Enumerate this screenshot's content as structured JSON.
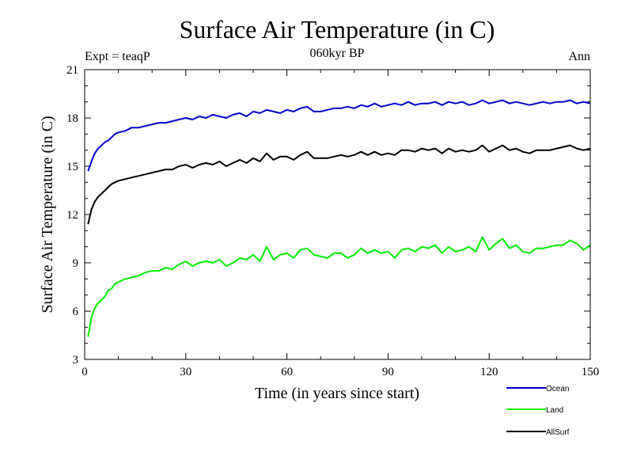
{
  "chart_data": {
    "type": "line",
    "title": "Surface Air Temperature (in C)",
    "subtitle": "060kyr BP",
    "left_label": "Expt = teaqP",
    "right_label": "Ann",
    "xlabel": "Time (in years since start)",
    "ylabel": "Surface Air Temperature (in C)",
    "xlim": [
      0,
      150
    ],
    "ylim": [
      3,
      21
    ],
    "xticks": [
      0,
      30,
      60,
      90,
      120,
      150
    ],
    "yticks": [
      3,
      6,
      9,
      12,
      15,
      18,
      21
    ],
    "legend_position": "bottom-right",
    "series": [
      {
        "name": "Ocean",
        "color": "#0000cc",
        "x": [
          1,
          2,
          3,
          4,
          5,
          6,
          7,
          8,
          9,
          10,
          12,
          14,
          16,
          18,
          20,
          22,
          24,
          26,
          28,
          30,
          32,
          34,
          36,
          38,
          40,
          42,
          44,
          46,
          48,
          50,
          52,
          54,
          56,
          58,
          60,
          62,
          64,
          66,
          68,
          70,
          72,
          74,
          76,
          78,
          80,
          82,
          84,
          86,
          88,
          90,
          92,
          94,
          96,
          98,
          100,
          102,
          104,
          106,
          108,
          110,
          112,
          114,
          116,
          118,
          120,
          122,
          124,
          126,
          128,
          130,
          132,
          134,
          136,
          138,
          140,
          142,
          144,
          146,
          148,
          150
        ],
        "values": [
          14.7,
          15.3,
          15.8,
          16.1,
          16.3,
          16.5,
          16.6,
          16.8,
          17.0,
          17.1,
          17.2,
          17.4,
          17.4,
          17.5,
          17.6,
          17.7,
          17.7,
          17.8,
          17.9,
          18.0,
          17.9,
          18.1,
          18.0,
          18.2,
          18.1,
          18.0,
          18.2,
          18.3,
          18.1,
          18.4,
          18.3,
          18.5,
          18.4,
          18.3,
          18.5,
          18.4,
          18.6,
          18.7,
          18.4,
          18.4,
          18.5,
          18.6,
          18.6,
          18.7,
          18.6,
          18.8,
          18.7,
          18.9,
          18.7,
          18.8,
          18.9,
          18.8,
          19.0,
          18.8,
          18.9,
          18.9,
          19.0,
          18.8,
          19.0,
          18.9,
          19.0,
          18.8,
          18.9,
          19.1,
          18.9,
          19.0,
          19.1,
          18.9,
          19.0,
          18.9,
          18.8,
          18.9,
          19.0,
          18.9,
          19.0,
          19.0,
          19.1,
          18.9,
          19.0,
          18.9
        ]
      },
      {
        "name": "Land",
        "color": "#00ee00",
        "x": [
          1,
          2,
          3,
          4,
          5,
          6,
          7,
          8,
          9,
          10,
          12,
          14,
          16,
          18,
          20,
          22,
          24,
          26,
          28,
          30,
          32,
          34,
          36,
          38,
          40,
          42,
          44,
          46,
          48,
          50,
          52,
          54,
          56,
          58,
          60,
          62,
          64,
          66,
          68,
          70,
          72,
          74,
          76,
          78,
          80,
          82,
          84,
          86,
          88,
          90,
          92,
          94,
          96,
          98,
          100,
          102,
          104,
          106,
          108,
          110,
          112,
          114,
          116,
          118,
          120,
          122,
          124,
          126,
          128,
          130,
          132,
          134,
          136,
          138,
          140,
          142,
          144,
          146,
          148,
          150
        ],
        "values": [
          4.4,
          5.6,
          6.2,
          6.5,
          6.7,
          6.9,
          7.3,
          7.4,
          7.7,
          7.8,
          8.0,
          8.1,
          8.2,
          8.4,
          8.5,
          8.5,
          8.7,
          8.6,
          8.9,
          9.1,
          8.8,
          9.0,
          9.1,
          9.0,
          9.2,
          8.8,
          9.0,
          9.3,
          9.2,
          9.5,
          9.1,
          10.0,
          9.2,
          9.5,
          9.6,
          9.3,
          9.8,
          9.9,
          9.5,
          9.4,
          9.3,
          9.6,
          9.6,
          9.3,
          9.5,
          9.9,
          9.6,
          9.8,
          9.6,
          9.7,
          9.3,
          9.8,
          9.9,
          9.7,
          10.0,
          9.9,
          10.1,
          9.6,
          10.0,
          9.7,
          9.8,
          10.0,
          9.7,
          10.6,
          9.8,
          10.2,
          10.5,
          9.9,
          10.1,
          9.7,
          9.6,
          9.9,
          9.9,
          10.0,
          10.1,
          10.1,
          10.4,
          10.2,
          9.8,
          10.1
        ]
      },
      {
        "name": "AllSurf",
        "color": "#000000",
        "x": [
          1,
          2,
          3,
          4,
          5,
          6,
          7,
          8,
          9,
          10,
          12,
          14,
          16,
          18,
          20,
          22,
          24,
          26,
          28,
          30,
          32,
          34,
          36,
          38,
          40,
          42,
          44,
          46,
          48,
          50,
          52,
          54,
          56,
          58,
          60,
          62,
          64,
          66,
          68,
          70,
          72,
          74,
          76,
          78,
          80,
          82,
          84,
          86,
          88,
          90,
          92,
          94,
          96,
          98,
          100,
          102,
          104,
          106,
          108,
          110,
          112,
          114,
          116,
          118,
          120,
          122,
          124,
          126,
          128,
          130,
          132,
          134,
          136,
          138,
          140,
          142,
          144,
          146,
          148,
          150
        ],
        "values": [
          11.4,
          12.3,
          12.8,
          13.1,
          13.3,
          13.5,
          13.7,
          13.9,
          14.0,
          14.1,
          14.2,
          14.3,
          14.4,
          14.5,
          14.6,
          14.7,
          14.8,
          14.8,
          15.0,
          15.1,
          14.9,
          15.1,
          15.2,
          15.1,
          15.3,
          15.0,
          15.2,
          15.4,
          15.2,
          15.5,
          15.3,
          15.8,
          15.4,
          15.6,
          15.6,
          15.4,
          15.7,
          15.9,
          15.5,
          15.5,
          15.5,
          15.6,
          15.7,
          15.6,
          15.7,
          15.9,
          15.7,
          15.9,
          15.7,
          15.8,
          15.7,
          16.0,
          16.0,
          15.9,
          16.1,
          16.0,
          16.1,
          15.8,
          16.1,
          15.9,
          16.0,
          15.9,
          16.0,
          16.3,
          15.9,
          16.1,
          16.3,
          16.0,
          16.1,
          15.9,
          15.8,
          16.0,
          16.0,
          16.0,
          16.1,
          16.2,
          16.3,
          16.1,
          16.0,
          16.1
        ]
      }
    ]
  }
}
